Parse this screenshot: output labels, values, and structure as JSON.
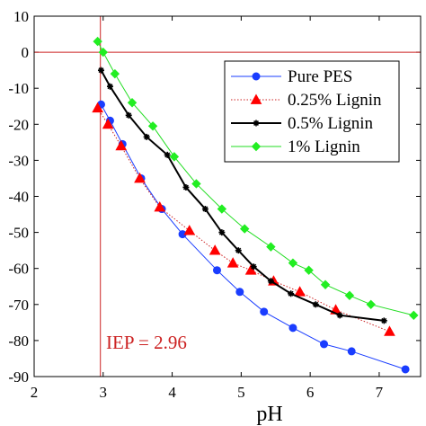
{
  "chart_data": {
    "type": "line",
    "xlabel": "pH",
    "ylabel": "",
    "xlim": [
      2,
      7.6
    ],
    "ylim": [
      -90,
      10
    ],
    "xticks": [
      "2",
      "3",
      "4",
      "5",
      "6",
      "7"
    ],
    "yticks": [
      "10",
      "0",
      "-10",
      "-20",
      "-30",
      "-40",
      "-50",
      "-60",
      "-70",
      "-80",
      "-90"
    ],
    "grid": false,
    "legend_position": "top-right",
    "annotation": {
      "text": "IEP = 2.96",
      "iep_x": 2.96,
      "zero_line_y": 0,
      "color": "#cc2222"
    },
    "series": [
      {
        "name": "Pure PES",
        "color": "#1a3dff",
        "line_style": "solid",
        "marker": "circle",
        "marker_color": "#1a3dff",
        "x": [
          2.97,
          3.1,
          3.28,
          3.55,
          3.85,
          4.15,
          4.65,
          4.98,
          5.33,
          5.75,
          6.2,
          6.6,
          7.38
        ],
        "y": [
          -14.5,
          -19,
          -25.5,
          -35,
          -43.5,
          -50.5,
          -60.5,
          -66.5,
          -72,
          -76.5,
          -81,
          -83,
          -88
        ]
      },
      {
        "name": "0.25% Lignin",
        "color": "#cc2222",
        "line_style": "dotted",
        "marker": "triangle",
        "marker_color": "#ff0000",
        "x": [
          2.92,
          3.07,
          3.26,
          3.53,
          3.82,
          4.25,
          4.62,
          4.88,
          5.14,
          5.47,
          5.85,
          6.37,
          7.15
        ],
        "y": [
          -15.5,
          -20,
          -26,
          -35,
          -43,
          -49.5,
          -55,
          -58.5,
          -60.5,
          -63.5,
          -66.5,
          -71.5,
          -77.5
        ]
      },
      {
        "name": "0.5% Lignin",
        "color": "#000000",
        "line_style": "solid",
        "marker": "star",
        "marker_color": "#000000",
        "x": [
          2.97,
          3.1,
          3.37,
          3.63,
          3.93,
          4.2,
          4.48,
          4.72,
          4.96,
          5.18,
          5.43,
          5.72,
          6.08,
          6.43,
          7.07
        ],
        "y": [
          -5,
          -9.5,
          -17.5,
          -23.5,
          -28.5,
          -37.5,
          -43.5,
          -50,
          -55,
          -59.5,
          -63.5,
          -67,
          -70,
          -73,
          -74.5
        ]
      },
      {
        "name": "1% Lignin",
        "color": "#22dd22",
        "line_style": "solid",
        "marker": "diamond",
        "marker_color": "#22ee22",
        "x": [
          2.92,
          3.0,
          3.17,
          3.42,
          3.72,
          4.03,
          4.35,
          4.72,
          5.05,
          5.43,
          5.75,
          5.98,
          6.22,
          6.57,
          6.88,
          7.5
        ],
        "y": [
          3,
          0,
          -6,
          -14,
          -20.5,
          -29,
          -36.5,
          -43.5,
          -49,
          -54,
          -58.5,
          -60.5,
          -64.5,
          -67.5,
          -70,
          -73
        ]
      }
    ]
  }
}
